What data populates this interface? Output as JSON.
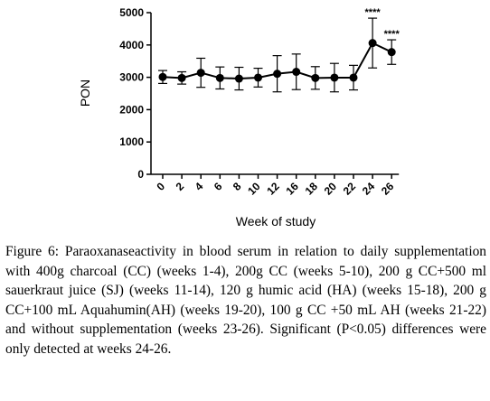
{
  "chart_data": {
    "type": "line",
    "title": "",
    "xlabel": "Week of study",
    "ylabel": "PON",
    "ylim": [
      0,
      5000
    ],
    "yticks": [
      0,
      1000,
      2000,
      3000,
      4000,
      5000
    ],
    "categories": [
      "0",
      "2",
      "4",
      "6",
      "8",
      "10",
      "12",
      "16",
      "18",
      "20",
      "22",
      "24",
      "26"
    ],
    "series": [
      {
        "values": [
          3010,
          2980,
          3140,
          2980,
          2960,
          2990,
          3110,
          3170,
          2980,
          2990,
          2990,
          4060,
          3780
        ],
        "error": [
          200,
          190,
          450,
          340,
          350,
          290,
          560,
          550,
          350,
          440,
          380,
          770,
          380
        ],
        "color": "#000000"
      }
    ],
    "annotations": [
      {
        "category": "24",
        "text": "****"
      },
      {
        "category": "26",
        "text": "****"
      }
    ],
    "grid": false,
    "legend": "none"
  },
  "caption": {
    "label": "Figure 6:",
    "text": " Paraoxanaseactivity in blood serum in relation to daily supplementation with 400g charcoal (CC) (weeks 1-4), 200g CC (weeks 5-10), 200 g CC+500 ml sauerkraut juice (SJ) (weeks 11-14), 120 g humic acid (HA) (weeks 15-18), 200 g CC+100 mL Aquahumin(AH) (weeks 19-20), 100 g CC +50 mL AH (weeks 21-22) and without supplementation (weeks 23-26). Significant (P<0.05) differences were only detected at weeks 24-26."
  }
}
